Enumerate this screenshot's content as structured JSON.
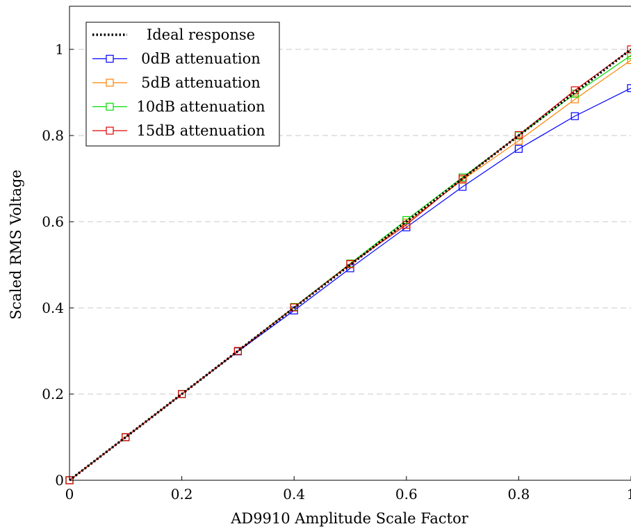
{
  "chart_data": {
    "type": "line",
    "title": "",
    "xlabel": "AD9910 Amplitude Scale Factor",
    "ylabel": "Scaled RMS Voltage",
    "xlim": [
      0,
      1
    ],
    "ylim": [
      0,
      1.1
    ],
    "x_ticks": [
      "0",
      "0.2",
      "0.4",
      "0.6",
      "0.8",
      "1"
    ],
    "y_ticks": [
      "0",
      "0.2",
      "0.4",
      "0.6",
      "0.8",
      "1"
    ],
    "grid": "horizontal dashed",
    "legend_position": "top-left",
    "x": [
      0,
      0.1,
      0.2,
      0.3,
      0.4,
      0.5,
      0.6,
      0.7,
      0.8,
      0.9,
      1.0
    ],
    "series": [
      {
        "name": "Ideal response",
        "color": "#000000",
        "style": "dotted",
        "values": [
          0,
          0.1,
          0.2,
          0.3,
          0.4,
          0.5,
          0.6,
          0.7,
          0.8,
          0.9,
          1.0
        ]
      },
      {
        "name": "0dB attenuation",
        "color": "#0000ff",
        "marker": "square",
        "values": [
          0,
          0.1,
          0.2,
          0.299,
          0.394,
          0.492,
          0.587,
          0.681,
          0.769,
          0.845,
          0.91
        ]
      },
      {
        "name": "5dB attenuation",
        "color": "#ff8000",
        "marker": "square",
        "values": [
          0,
          0.1,
          0.2,
          0.3,
          0.402,
          0.501,
          0.598,
          0.697,
          0.788,
          0.884,
          0.975
        ]
      },
      {
        "name": "10dB attenuation",
        "color": "#00dd00",
        "marker": "square",
        "values": [
          0,
          0.1,
          0.2,
          0.3,
          0.402,
          0.503,
          0.604,
          0.703,
          0.8,
          0.897,
          0.986
        ]
      },
      {
        "name": "15dB attenuation",
        "color": "#e00000",
        "marker": "square",
        "values": [
          0,
          0.1,
          0.2,
          0.3,
          0.401,
          0.502,
          0.593,
          0.7,
          0.801,
          0.905,
          1.0
        ]
      }
    ]
  }
}
